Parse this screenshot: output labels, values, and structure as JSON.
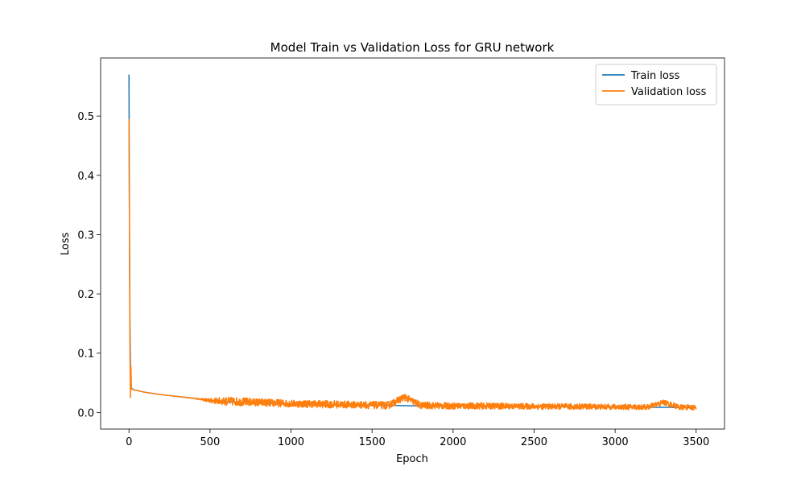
{
  "chart_data": {
    "type": "line",
    "title": "Model Train vs Validation Loss for GRU network",
    "xlabel": "Epoch",
    "ylabel": "Loss",
    "xlim": [
      -175,
      3675
    ],
    "ylim": [
      -0.028,
      0.598
    ],
    "xticks": [
      0,
      500,
      1000,
      1500,
      2000,
      2500,
      3000,
      3500
    ],
    "yticks": [
      0.0,
      0.1,
      0.2,
      0.3,
      0.4,
      0.5
    ],
    "ytick_labels": [
      "0.0",
      "0.1",
      "0.2",
      "0.3",
      "0.4",
      "0.5"
    ],
    "grid": false,
    "legend_position": "top-right",
    "series": [
      {
        "name": "Train loss",
        "color": "#1f77b4",
        "x": [
          0,
          3,
          6,
          9,
          12,
          15,
          20,
          30,
          50,
          100,
          200,
          300,
          400,
          450,
          500,
          600,
          700,
          800,
          900,
          1000,
          1200,
          1400,
          1600,
          1800,
          2000,
          2200,
          2400,
          2600,
          2800,
          3000,
          3200,
          3400,
          3500
        ],
        "y": [
          0.57,
          0.3,
          0.15,
          0.08,
          0.05,
          0.042,
          0.04,
          0.038,
          0.037,
          0.034,
          0.03,
          0.027,
          0.024,
          0.022,
          0.019,
          0.018,
          0.017,
          0.016,
          0.015,
          0.014,
          0.013,
          0.012,
          0.012,
          0.011,
          0.011,
          0.0105,
          0.01,
          0.01,
          0.0095,
          0.009,
          0.0088,
          0.0085,
          0.0083
        ]
      },
      {
        "name": "Validation loss",
        "color": "#ff7f0e",
        "x": [
          0,
          3,
          6,
          9,
          12,
          15,
          20,
          30,
          50,
          100,
          200,
          300,
          400,
          450,
          500,
          600,
          700,
          800,
          900,
          1000,
          1200,
          1400,
          1600,
          1700,
          1800,
          2000,
          2200,
          2400,
          2600,
          2800,
          3000,
          3200,
          3300,
          3400,
          3500
        ],
        "y": [
          0.495,
          0.3,
          0.1,
          0.025,
          0.078,
          0.04,
          0.039,
          0.038,
          0.037,
          0.034,
          0.03,
          0.027,
          0.024,
          0.022,
          0.02,
          0.019,
          0.018,
          0.017,
          0.016,
          0.015,
          0.014,
          0.013,
          0.012,
          0.026,
          0.012,
          0.011,
          0.011,
          0.0105,
          0.01,
          0.01,
          0.0095,
          0.009,
          0.017,
          0.0088,
          0.0085
        ],
        "noise_amplitude": [
          0,
          0,
          0,
          0,
          0,
          0,
          0,
          0,
          0,
          0,
          0,
          0,
          0.0005,
          0.0015,
          0.004,
          0.007,
          0.007,
          0.0065,
          0.0065,
          0.006,
          0.0065,
          0.006,
          0.0065,
          0.006,
          0.006,
          0.0055,
          0.0055,
          0.005,
          0.005,
          0.005,
          0.0045,
          0.0045,
          0.0045,
          0.0045,
          0.0045
        ]
      }
    ]
  }
}
